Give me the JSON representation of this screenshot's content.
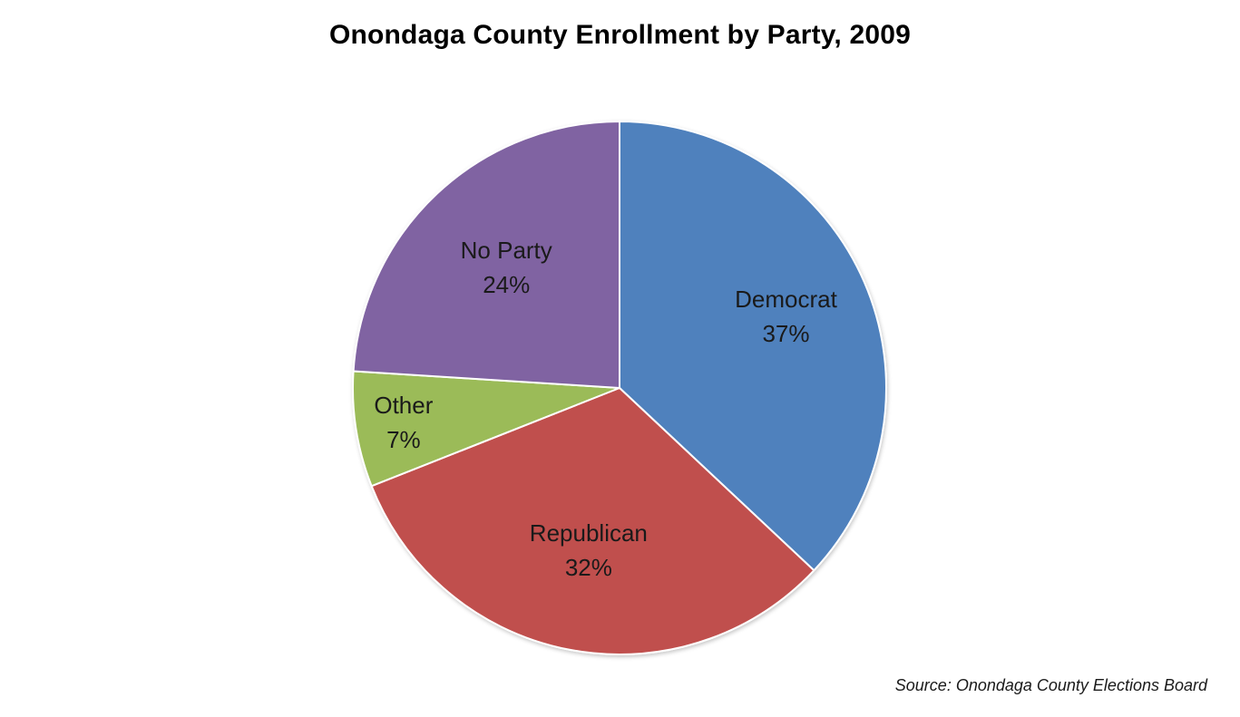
{
  "chart_data": {
    "type": "pie",
    "title": "Onondaga County Enrollment by Party, 2009",
    "source": "Source: Onondaga County Elections Board",
    "slices": [
      {
        "key": "democrat",
        "label": "Democrat",
        "value": 37,
        "value_label": "37%",
        "color": "#4f81bd"
      },
      {
        "key": "republican",
        "label": "Republican",
        "value": 32,
        "value_label": "32%",
        "color": "#c0504d"
      },
      {
        "key": "other",
        "label": "Other",
        "value": 7,
        "value_label": "7%",
        "color": "#9bbb59"
      },
      {
        "key": "no-party",
        "label": "No Party",
        "value": 24,
        "value_label": "24%",
        "color": "#8064a2"
      }
    ],
    "start_angle_deg": 0,
    "direction": "clockwise",
    "legend": "none"
  }
}
